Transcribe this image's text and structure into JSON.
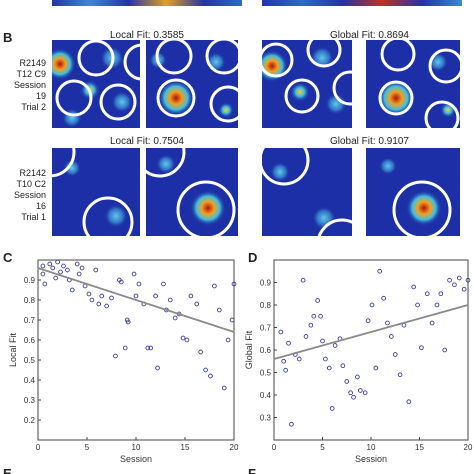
{
  "panel_b": {
    "letter": "B",
    "rows": [
      {
        "label_lines": [
          "R2149",
          "T12 C9",
          "Session 19",
          "Trial 2"
        ],
        "local_fit": "Local Fit: 0.3585",
        "global_fit": "Global Fit: 0.8694"
      },
      {
        "label_lines": [
          "R2142",
          "T10 C2",
          "Session 16",
          "Trial 1"
        ],
        "local_fit": "Local Fit: 0.7504",
        "global_fit": "Global Fit: 0.9107"
      }
    ]
  },
  "panel_c": {
    "letter": "C"
  },
  "panel_d": {
    "letter": "D"
  },
  "panel_e": {
    "letter": "E"
  },
  "panel_f": {
    "letter": "F"
  },
  "colors": {
    "point": "#3b3ba8",
    "trend": "#8a8a8a",
    "map_bg": "#1a2a9a"
  },
  "chart_data": [
    {
      "type": "scatter",
      "title": "",
      "xlabel": "Session",
      "ylabel": "Local Fit",
      "xlim": [
        0,
        20
      ],
      "ylim": [
        0.1,
        1.0
      ],
      "xticks": [
        0,
        5,
        10,
        15,
        20
      ],
      "yticks": [
        0.2,
        0.3,
        0.4,
        0.5,
        0.6,
        0.7,
        0.8,
        0.9
      ],
      "grid": false,
      "points": [
        [
          0.5,
          0.97
        ],
        [
          0.5,
          0.93
        ],
        [
          0.7,
          0.88
        ],
        [
          1.2,
          0.98
        ],
        [
          1.5,
          0.96
        ],
        [
          1.8,
          0.91
        ],
        [
          2.0,
          0.99
        ],
        [
          2.3,
          0.94
        ],
        [
          2.6,
          0.97
        ],
        [
          3.0,
          0.95
        ],
        [
          3.2,
          0.9
        ],
        [
          3.5,
          0.85
        ],
        [
          4.0,
          0.98
        ],
        [
          4.2,
          0.93
        ],
        [
          4.5,
          0.96
        ],
        [
          4.8,
          0.87
        ],
        [
          5.2,
          0.83
        ],
        [
          5.5,
          0.8
        ],
        [
          5.9,
          0.95
        ],
        [
          6.2,
          0.78
        ],
        [
          6.5,
          0.82
        ],
        [
          7.0,
          0.77
        ],
        [
          7.5,
          0.81
        ],
        [
          7.9,
          0.52
        ],
        [
          8.3,
          0.9
        ],
        [
          8.5,
          0.89
        ],
        [
          8.9,
          0.56
        ],
        [
          9.1,
          0.7
        ],
        [
          9.2,
          0.69
        ],
        [
          9.8,
          0.93
        ],
        [
          10.0,
          0.82
        ],
        [
          10.3,
          0.88
        ],
        [
          10.8,
          0.78
        ],
        [
          11.2,
          0.56
        ],
        [
          11.5,
          0.56
        ],
        [
          12.0,
          0.82
        ],
        [
          12.2,
          0.46
        ],
        [
          12.8,
          0.88
        ],
        [
          13.1,
          0.75
        ],
        [
          13.5,
          0.8
        ],
        [
          14.0,
          0.71
        ],
        [
          14.4,
          0.73
        ],
        [
          14.8,
          0.61
        ],
        [
          15.2,
          0.6
        ],
        [
          15.6,
          0.82
        ],
        [
          16.2,
          0.78
        ],
        [
          16.6,
          0.54
        ],
        [
          17.1,
          0.45
        ],
        [
          17.6,
          0.42
        ],
        [
          18.0,
          0.87
        ],
        [
          18.5,
          0.75
        ],
        [
          19.0,
          0.36
        ],
        [
          19.4,
          0.6
        ],
        [
          19.8,
          0.7
        ],
        [
          20.0,
          0.88
        ]
      ],
      "trend_line": {
        "x": [
          0,
          20
        ],
        "y": [
          0.96,
          0.64
        ]
      }
    },
    {
      "type": "scatter",
      "title": "",
      "xlabel": "Session",
      "ylabel": "Global Fit",
      "xlim": [
        0,
        20
      ],
      "ylim": [
        0.2,
        1.0
      ],
      "xticks": [
        0,
        5,
        10,
        15,
        20
      ],
      "yticks": [
        0.3,
        0.4,
        0.5,
        0.6,
        0.7,
        0.8,
        0.9
      ],
      "grid": false,
      "points": [
        [
          0.7,
          0.68
        ],
        [
          1.0,
          0.55
        ],
        [
          1.2,
          0.51
        ],
        [
          1.5,
          0.63
        ],
        [
          1.8,
          0.27
        ],
        [
          2.2,
          0.58
        ],
        [
          2.6,
          0.56
        ],
        [
          3.0,
          0.91
        ],
        [
          3.3,
          0.66
        ],
        [
          3.8,
          0.71
        ],
        [
          4.1,
          0.75
        ],
        [
          4.5,
          0.82
        ],
        [
          4.8,
          0.75
        ],
        [
          5.0,
          0.64
        ],
        [
          5.3,
          0.56
        ],
        [
          5.7,
          0.52
        ],
        [
          6.0,
          0.34
        ],
        [
          6.3,
          0.62
        ],
        [
          6.8,
          0.65
        ],
        [
          7.1,
          0.53
        ],
        [
          7.5,
          0.46
        ],
        [
          7.9,
          0.41
        ],
        [
          8.2,
          0.39
        ],
        [
          8.6,
          0.48
        ],
        [
          8.9,
          0.42
        ],
        [
          9.4,
          0.41
        ],
        [
          9.7,
          0.73
        ],
        [
          10.1,
          0.8
        ],
        [
          10.5,
          0.52
        ],
        [
          10.9,
          0.95
        ],
        [
          11.3,
          0.83
        ],
        [
          11.7,
          0.72
        ],
        [
          12.1,
          0.66
        ],
        [
          12.5,
          0.58
        ],
        [
          13.0,
          0.49
        ],
        [
          13.4,
          0.71
        ],
        [
          13.9,
          0.37
        ],
        [
          14.4,
          0.88
        ],
        [
          14.8,
          0.8
        ],
        [
          15.2,
          0.61
        ],
        [
          15.8,
          0.85
        ],
        [
          16.3,
          0.72
        ],
        [
          16.8,
          0.8
        ],
        [
          17.2,
          0.85
        ],
        [
          17.6,
          0.6
        ],
        [
          18.1,
          0.91
        ],
        [
          18.6,
          0.89
        ],
        [
          19.1,
          0.92
        ],
        [
          19.6,
          0.87
        ],
        [
          20.0,
          0.91
        ]
      ],
      "trend_line": {
        "x": [
          0,
          20
        ],
        "y": [
          0.56,
          0.8
        ]
      }
    }
  ]
}
